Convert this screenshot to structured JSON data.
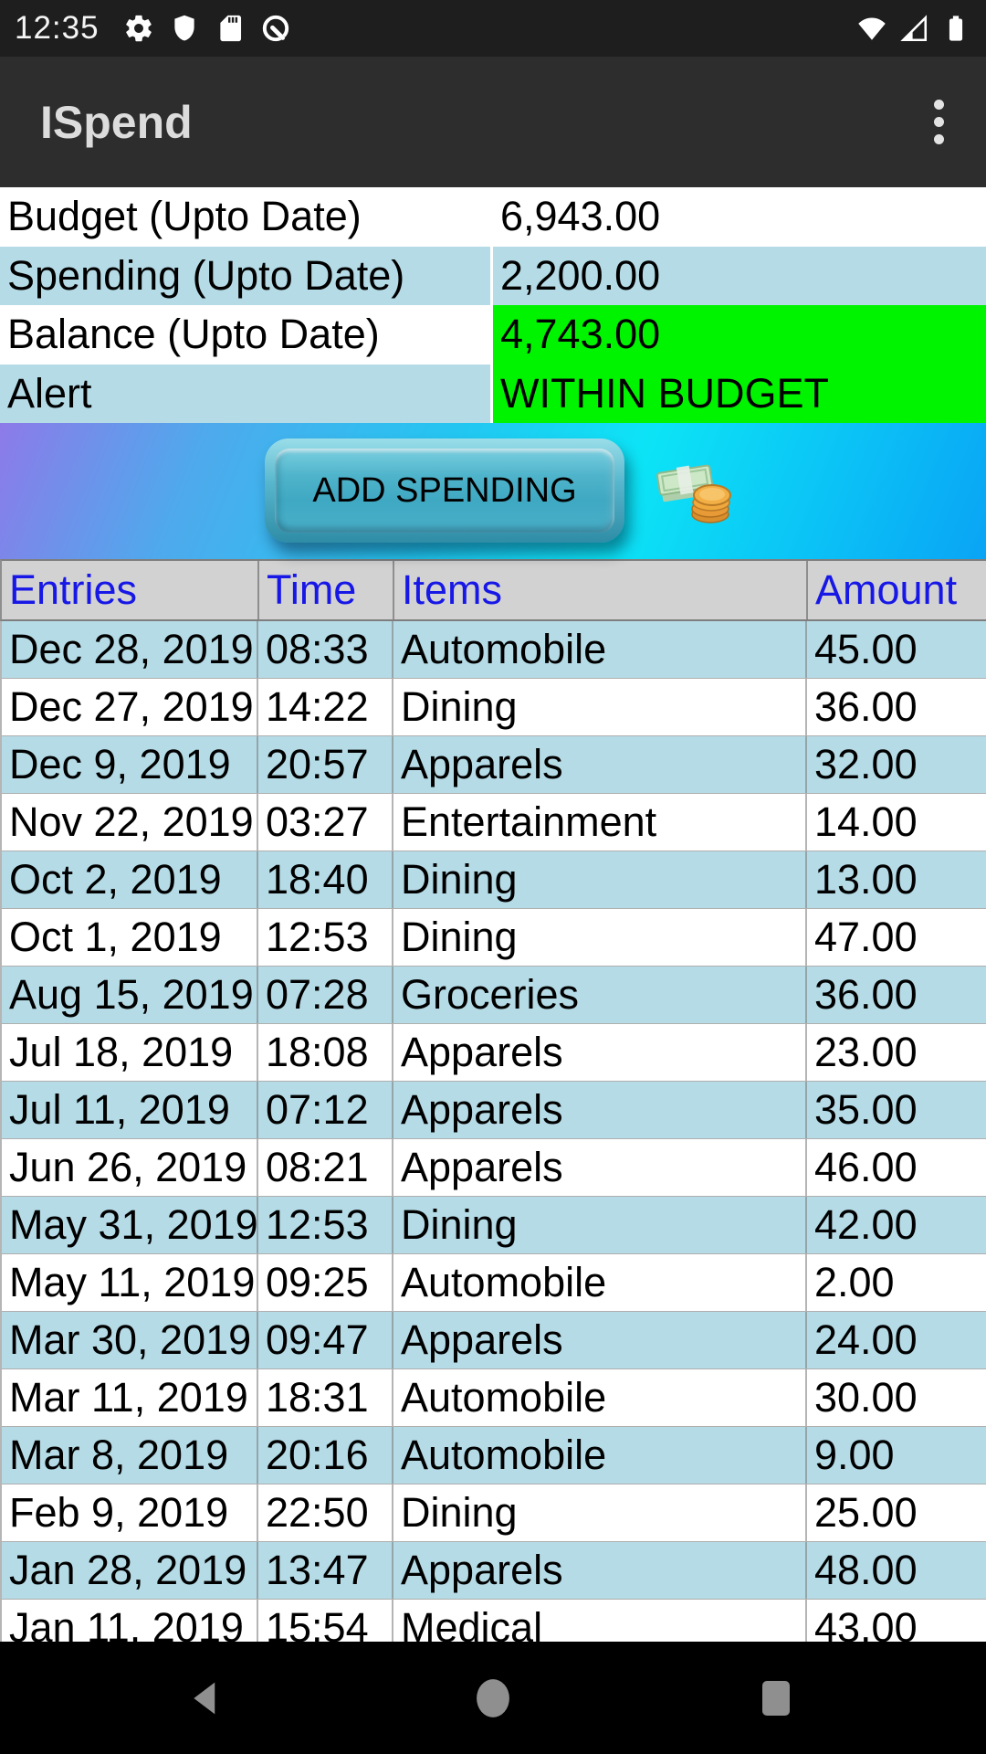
{
  "status_bar": {
    "time": "12:35",
    "left_icons": [
      "gear-icon",
      "shield-icon",
      "sdcard-icon",
      "android-q-icon"
    ],
    "right_icons": [
      "wifi-icon",
      "cell-signal-icon",
      "battery-icon"
    ]
  },
  "app_bar": {
    "title": "ISpend",
    "overflow_icon": "overflow-menu-icon"
  },
  "summary": {
    "rows": [
      {
        "label": "Budget (Upto Date)",
        "value": "6,943.00"
      },
      {
        "label": "Spending (Upto Date)",
        "value": "2,200.00"
      },
      {
        "label": "Balance (Upto Date)",
        "value": "4,743.00"
      },
      {
        "label": "Alert",
        "value": "WITHIN BUDGET"
      }
    ]
  },
  "action": {
    "button_label": "ADD SPENDING",
    "icon": "money-cash-coins-icon"
  },
  "entries_table": {
    "columns": [
      "Entries",
      "Time",
      "Items",
      "Amount"
    ],
    "rows": [
      {
        "date": "Dec 28, 2019",
        "time": "08:33",
        "item": "Automobile",
        "amount": "45.00"
      },
      {
        "date": "Dec 27, 2019",
        "time": "14:22",
        "item": "Dining",
        "amount": "36.00"
      },
      {
        "date": "Dec 9, 2019",
        "time": "20:57",
        "item": "Apparels",
        "amount": "32.00"
      },
      {
        "date": "Nov 22, 2019",
        "time": "03:27",
        "item": "Entertainment",
        "amount": "14.00"
      },
      {
        "date": "Oct 2, 2019",
        "time": "18:40",
        "item": "Dining",
        "amount": "13.00"
      },
      {
        "date": "Oct 1, 2019",
        "time": "12:53",
        "item": "Dining",
        "amount": "47.00"
      },
      {
        "date": "Aug 15, 2019",
        "time": "07:28",
        "item": "Groceries",
        "amount": "36.00"
      },
      {
        "date": "Jul 18, 2019",
        "time": "18:08",
        "item": "Apparels",
        "amount": "23.00"
      },
      {
        "date": "Jul 11, 2019",
        "time": "07:12",
        "item": "Apparels",
        "amount": "35.00"
      },
      {
        "date": "Jun 26, 2019",
        "time": "08:21",
        "item": "Apparels",
        "amount": "46.00"
      },
      {
        "date": "May 31, 2019",
        "time": "12:53",
        "item": "Dining",
        "amount": "42.00"
      },
      {
        "date": "May 11, 2019",
        "time": "09:25",
        "item": "Automobile",
        "amount": "2.00"
      },
      {
        "date": "Mar 30, 2019",
        "time": "09:47",
        "item": "Apparels",
        "amount": "24.00"
      },
      {
        "date": "Mar 11, 2019",
        "time": "18:31",
        "item": "Automobile",
        "amount": "30.00"
      },
      {
        "date": "Mar 8, 2019",
        "time": "20:16",
        "item": "Automobile",
        "amount": "9.00"
      },
      {
        "date": "Feb 9, 2019",
        "time": "22:50",
        "item": "Dining",
        "amount": "25.00"
      },
      {
        "date": "Jan 28, 2019",
        "time": "13:47",
        "item": "Apparels",
        "amount": "48.00"
      },
      {
        "date": "Jan 11, 2019",
        "time": "15:54",
        "item": "Medical",
        "amount": "43.00"
      }
    ]
  },
  "nav_bar": {
    "icons": [
      "back-icon",
      "home-icon",
      "recents-icon"
    ]
  },
  "colors": {
    "status_bar_bg": "#1E1E1E",
    "app_bar_bg": "#2D2D2D",
    "title_text": "#DCDCDC",
    "row_alt_blue": "#B5DBE6",
    "balance_green": "#00F400",
    "header_bg": "#D2D2D2",
    "header_text": "#1717E6",
    "band_gradient": [
      "#8D7AE9",
      "#4FA9EC",
      "#22C7F1",
      "#0CE4F6",
      "#0AA4F5"
    ],
    "button_face": "#4FB4CB",
    "nav_icon": "#8F8F8F"
  }
}
